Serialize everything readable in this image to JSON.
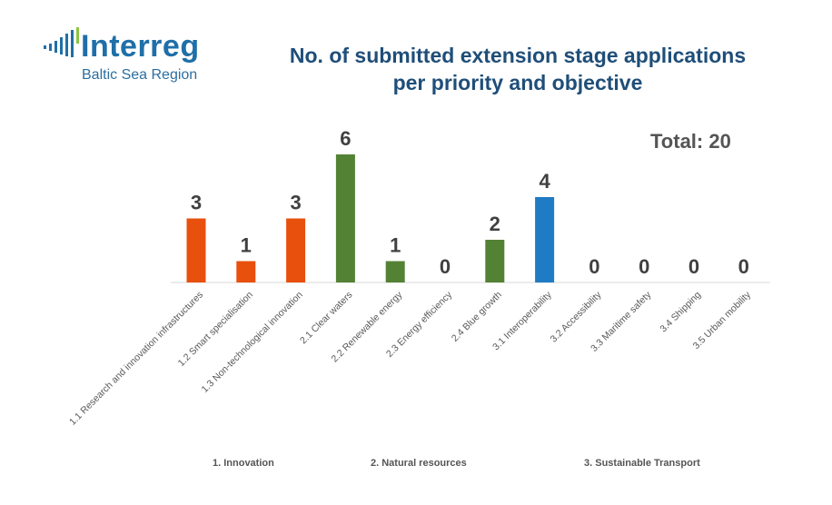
{
  "logo": {
    "word": "Interreg",
    "subtitle": "Baltic Sea Region"
  },
  "title_line1": "No. of submitted extension stage applications",
  "title_line2": "per priority and objective",
  "total_label": "Total: 20",
  "groups": [
    "1. Innovation",
    "2. Natural resources",
    "3. Sustainable Transport"
  ],
  "colors": {
    "innovation": "#e8500e",
    "natural": "#548235",
    "transport": "#1f7bc4",
    "axis": "#d9d9d9",
    "value": "#404040",
    "label": "#595959"
  },
  "chart_data": {
    "type": "bar",
    "title": "No. of submitted extension stage applications per priority and objective",
    "categories": [
      "1.1 Research and innovation infrastructures",
      "1.2 Smart specialisation",
      "1.3 Non-technological innovation",
      "2.1 Clear waters",
      "2.2 Renewable energy",
      "2.3 Energy efficiency",
      "2.4 Blue growth",
      "3.1 Interoperability",
      "3.2 Accessibility",
      "3.3 Maritime safety",
      "3.4 Shipping",
      "3.5 Urban mobility"
    ],
    "values": [
      3,
      1,
      3,
      6,
      1,
      0,
      2,
      4,
      0,
      0,
      0,
      0
    ],
    "bar_colors": [
      "#e8500e",
      "#e8500e",
      "#e8500e",
      "#548235",
      "#548235",
      "#548235",
      "#548235",
      "#1f7bc4",
      "#1f7bc4",
      "#1f7bc4",
      "#1f7bc4",
      "#1f7bc4"
    ],
    "ylim": [
      0,
      6
    ],
    "grid": false,
    "data_labels": true
  }
}
